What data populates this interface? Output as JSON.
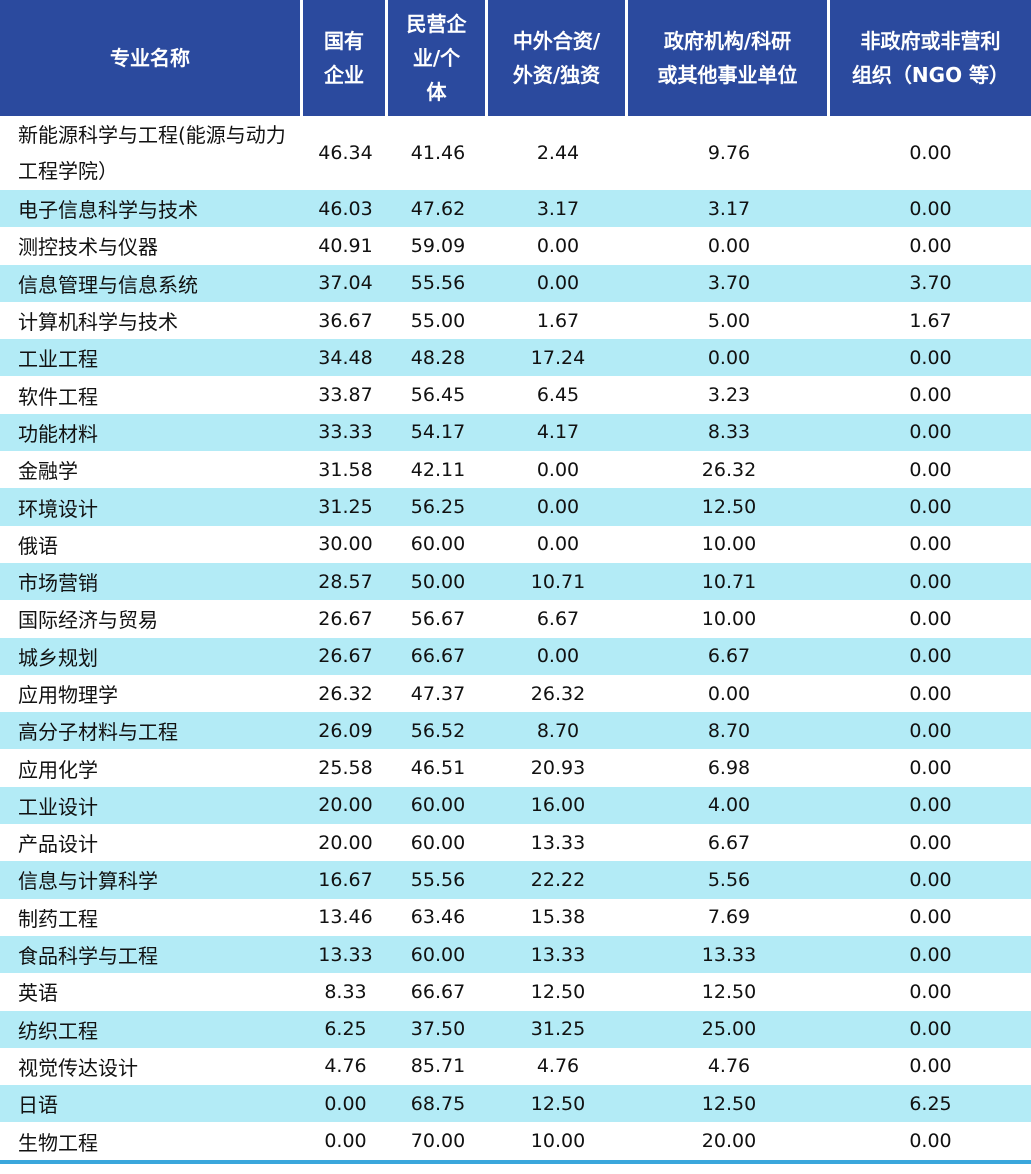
{
  "headers": [
    "专业名称",
    "国有企业",
    "民营企业/个体",
    "中外合资/外资/独资",
    "政府机构/科研或其他事业单位",
    "非政府或非营利组织（NGO 等）"
  ],
  "header_display": [
    "专业名称",
    "国有<br>企业",
    "民营企<br>业/个<br>体",
    "中外合资/<br>外资/独资",
    "政府机构/科研<br>或其他事业单位",
    "非政府或非营利<br>组织（NGO 等）"
  ],
  "colors": {
    "header_bg": "#2b4a9e",
    "stripe": "#b3ebf6",
    "rule": "#3aa7dc"
  },
  "rows": [
    [
      "新能源科学与工程(能源与动力工程学院）",
      "46.34",
      "41.46",
      "2.44",
      "9.76",
      "0.00"
    ],
    [
      "电子信息科学与技术",
      "46.03",
      "47.62",
      "3.17",
      "3.17",
      "0.00"
    ],
    [
      "测控技术与仪器",
      "40.91",
      "59.09",
      "0.00",
      "0.00",
      "0.00"
    ],
    [
      "信息管理与信息系统",
      "37.04",
      "55.56",
      "0.00",
      "3.70",
      "3.70"
    ],
    [
      "计算机科学与技术",
      "36.67",
      "55.00",
      "1.67",
      "5.00",
      "1.67"
    ],
    [
      "工业工程",
      "34.48",
      "48.28",
      "17.24",
      "0.00",
      "0.00"
    ],
    [
      "软件工程",
      "33.87",
      "56.45",
      "6.45",
      "3.23",
      "0.00"
    ],
    [
      "功能材料",
      "33.33",
      "54.17",
      "4.17",
      "8.33",
      "0.00"
    ],
    [
      "金融学",
      "31.58",
      "42.11",
      "0.00",
      "26.32",
      "0.00"
    ],
    [
      "环境设计",
      "31.25",
      "56.25",
      "0.00",
      "12.50",
      "0.00"
    ],
    [
      "俄语",
      "30.00",
      "60.00",
      "0.00",
      "10.00",
      "0.00"
    ],
    [
      "市场营销",
      "28.57",
      "50.00",
      "10.71",
      "10.71",
      "0.00"
    ],
    [
      "国际经济与贸易",
      "26.67",
      "56.67",
      "6.67",
      "10.00",
      "0.00"
    ],
    [
      "城乡规划",
      "26.67",
      "66.67",
      "0.00",
      "6.67",
      "0.00"
    ],
    [
      "应用物理学",
      "26.32",
      "47.37",
      "26.32",
      "0.00",
      "0.00"
    ],
    [
      "高分子材料与工程",
      "26.09",
      "56.52",
      "8.70",
      "8.70",
      "0.00"
    ],
    [
      "应用化学",
      "25.58",
      "46.51",
      "20.93",
      "6.98",
      "0.00"
    ],
    [
      "工业设计",
      "20.00",
      "60.00",
      "16.00",
      "4.00",
      "0.00"
    ],
    [
      "产品设计",
      "20.00",
      "60.00",
      "13.33",
      "6.67",
      "0.00"
    ],
    [
      "信息与计算科学",
      "16.67",
      "55.56",
      "22.22",
      "5.56",
      "0.00"
    ],
    [
      "制药工程",
      "13.46",
      "63.46",
      "15.38",
      "7.69",
      "0.00"
    ],
    [
      "食品科学与工程",
      "13.33",
      "60.00",
      "13.33",
      "13.33",
      "0.00"
    ],
    [
      "英语",
      "8.33",
      "66.67",
      "12.50",
      "12.50",
      "0.00"
    ],
    [
      "纺织工程",
      "6.25",
      "37.50",
      "31.25",
      "25.00",
      "0.00"
    ],
    [
      "视觉传达设计",
      "4.76",
      "85.71",
      "4.76",
      "4.76",
      "0.00"
    ],
    [
      "日语",
      "0.00",
      "68.75",
      "12.50",
      "12.50",
      "6.25"
    ],
    [
      "生物工程",
      "0.00",
      "70.00",
      "10.00",
      "20.00",
      "0.00"
    ]
  ]
}
